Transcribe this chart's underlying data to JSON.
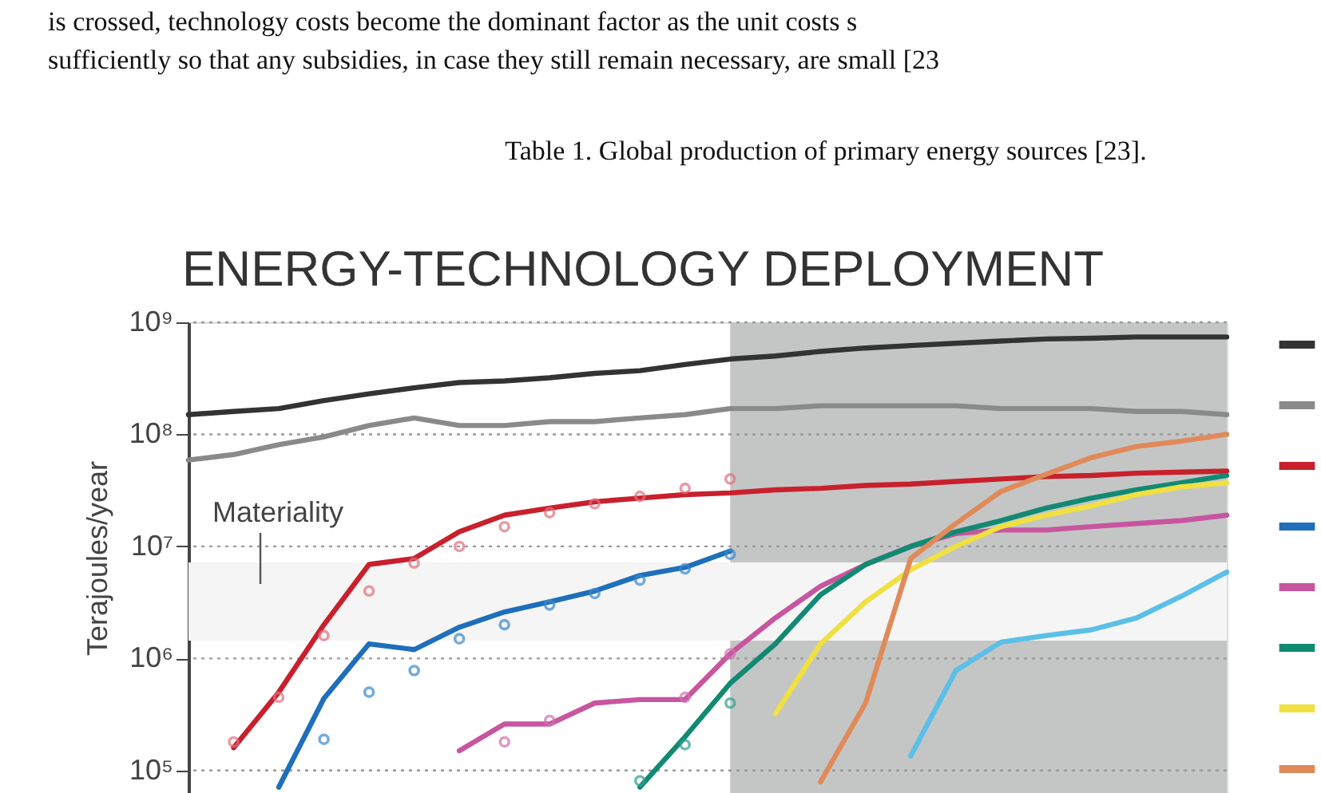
{
  "chart_data": {
    "type": "line",
    "title": "ENERGY-TECHNOLOGY DEPLOYMENT",
    "ylabel": "Terajoules/year",
    "annotations": [
      "is crossed, technology costs become the dominant factor as the unit costs s",
      "sufficiently so that any subsidies, in case they still remain necessary, are small [23",
      "Table 1. Global production of primary energy sources [23].",
      "Materiality"
    ],
    "categories": [
      null,
      null,
      null,
      null,
      null,
      null,
      null,
      null,
      null,
      null,
      null,
      null,
      null,
      null,
      null,
      null,
      null,
      null,
      null,
      null,
      null,
      null,
      null,
      null
    ],
    "log": "y",
    "ylim": [
      63000,
      1000000000
    ],
    "yticks": [
      {
        "value": 100000,
        "label": "10⁵"
      },
      {
        "value": 1000000,
        "label": "10⁶"
      },
      {
        "value": 10000000,
        "label": "10⁷"
      },
      {
        "value": 100000000,
        "label": "10⁸"
      },
      {
        "value": 1000000000,
        "label": "10⁹"
      }
    ],
    "grid": "y",
    "line_style": "solid",
    "bands": [
      {
        "axis": "y",
        "from": 1440000,
        "to": 7200000,
        "color": "#f4f5f4"
      }
    ],
    "series": [
      {
        "color": "#333333",
        "values": [
          150000000.0,
          160000000.0,
          170000000.0,
          200000000.0,
          230000000.0,
          260000000.0,
          290000000.0,
          300000000.0,
          320000000.0,
          350000000.0,
          370000000.0,
          420000000.0,
          470000000.0,
          500000000.0,
          550000000.0,
          590000000.0,
          620000000.0,
          650000000.0,
          680000000.0,
          710000000.0,
          720000000.0,
          740000000.0,
          740000000.0,
          740000000.0
        ]
      },
      {
        "color": "#8a8a8a",
        "values": [
          59000000.0,
          66000000.0,
          81000000.0,
          95000000.0,
          120000000.0,
          140000000.0,
          120000000.0,
          120000000.0,
          130000000.0,
          130000000.0,
          140000000.0,
          150000000.0,
          170000000.0,
          170000000.0,
          180000000.0,
          180000000.0,
          180000000.0,
          180000000.0,
          170000000.0,
          170000000.0,
          170000000.0,
          160000000.0,
          160000000.0,
          150000000.0
        ]
      },
      {
        "color": "#c8202c",
        "values": [
          null,
          160000.0,
          500000.0,
          2000000.0,
          6900000.0,
          7800000.0,
          13500000.0,
          19000000.0,
          22000000.0,
          25000000.0,
          27000000.0,
          29000000.0,
          30000000.0,
          32000000.0,
          33000000.0,
          35000000.0,
          36000000.0,
          38000000.0,
          40000000.0,
          42000000.0,
          43000000.0,
          45000000.0,
          46000000.0,
          47000000.0
        ]
      },
      {
        "color": "#1f6fba",
        "values": [
          null,
          null,
          71000.0,
          440000.0,
          1350000.0,
          1200000.0,
          1900000.0,
          2600000.0,
          3200000.0,
          4000000.0,
          5500000.0,
          6500000.0,
          9100000.0,
          null,
          null,
          null,
          null,
          null,
          null,
          null,
          null,
          null,
          null,
          null
        ]
      },
      {
        "color": "#c8559f",
        "values": [
          null,
          null,
          null,
          null,
          null,
          null,
          150000.0,
          260000.0,
          260000.0,
          400000.0,
          430000.0,
          430000.0,
          1100000.0,
          2300000.0,
          4400000.0,
          6900000.0,
          10000000.0,
          13000000.0,
          14000000.0,
          14000000.0,
          15000000.0,
          16000000.0,
          17000000.0,
          19000000.0
        ]
      },
      {
        "color": "#128a73",
        "values": [
          null,
          null,
          null,
          null,
          null,
          null,
          null,
          null,
          null,
          null,
          71000.0,
          200000.0,
          600000.0,
          1350000.0,
          3700000.0,
          6900000.0,
          10000000.0,
          13500000.0,
          17000000.0,
          22000000.0,
          27000000.0,
          32000000.0,
          37000000.0,
          43000000.0
        ]
      },
      {
        "color": "#f0e040",
        "values": [
          null,
          null,
          null,
          null,
          null,
          null,
          null,
          null,
          null,
          null,
          null,
          null,
          null,
          320000.0,
          1350000.0,
          3200000.0,
          6200000.0,
          10000000.0,
          15000000.0,
          19000000.0,
          23000000.0,
          29000000.0,
          34000000.0,
          37000000.0
        ]
      },
      {
        "color": "#e08a5a",
        "values": [
          null,
          null,
          null,
          null,
          null,
          null,
          null,
          null,
          null,
          null,
          null,
          null,
          null,
          null,
          79000.0,
          400000.0,
          7800000.0,
          16000000.0,
          31000000.0,
          44000000.0,
          62000000.0,
          78000000.0,
          87000000.0,
          100000000.0
        ]
      },
      {
        "color": "#5bbfe8",
        "values": [
          null,
          null,
          null,
          null,
          null,
          null,
          null,
          null,
          null,
          null,
          null,
          null,
          null,
          null,
          null,
          null,
          135000.0,
          780000.0,
          1400000.0,
          1600000.0,
          1800000.0,
          2300000.0,
          3600000.0,
          5900000.0
        ]
      },
      {
        "type": "scatter",
        "marker": "circle",
        "color": "#e07080",
        "values": [
          null,
          180000.0,
          450000.0,
          1600000.0,
          4000000.0,
          7100000.0,
          10000000.0,
          15000000.0,
          20000000.0,
          24000000.0,
          28000000.0,
          33000000.0,
          40000000.0,
          null,
          null,
          null,
          null,
          null,
          null,
          null,
          null,
          null,
          null,
          null
        ]
      },
      {
        "type": "scatter",
        "marker": "circle",
        "color": "#3a8ad0",
        "values": [
          null,
          null,
          null,
          190000.0,
          500000.0,
          780000.0,
          1500000.0,
          2000000.0,
          3000000.0,
          3800000.0,
          5000000.0,
          6300000.0,
          8500000.0,
          null,
          null,
          null,
          null,
          null,
          null,
          null,
          null,
          null,
          null,
          null
        ]
      },
      {
        "type": "scatter",
        "marker": "circle",
        "color": "#d070b0",
        "values": [
          null,
          null,
          null,
          null,
          null,
          null,
          null,
          180000.0,
          280000.0,
          null,
          null,
          450000.0,
          1100000.0,
          null,
          null,
          null,
          null,
          null,
          null,
          null,
          null,
          null,
          null,
          null
        ]
      },
      {
        "type": "scatter",
        "marker": "circle",
        "color": "#30a090",
        "values": [
          null,
          null,
          null,
          null,
          null,
          null,
          null,
          null,
          null,
          null,
          81000.0,
          170000.0,
          400000.0,
          null,
          null,
          null,
          null,
          null,
          null,
          null,
          null,
          null,
          null,
          null
        ]
      }
    ]
  }
}
